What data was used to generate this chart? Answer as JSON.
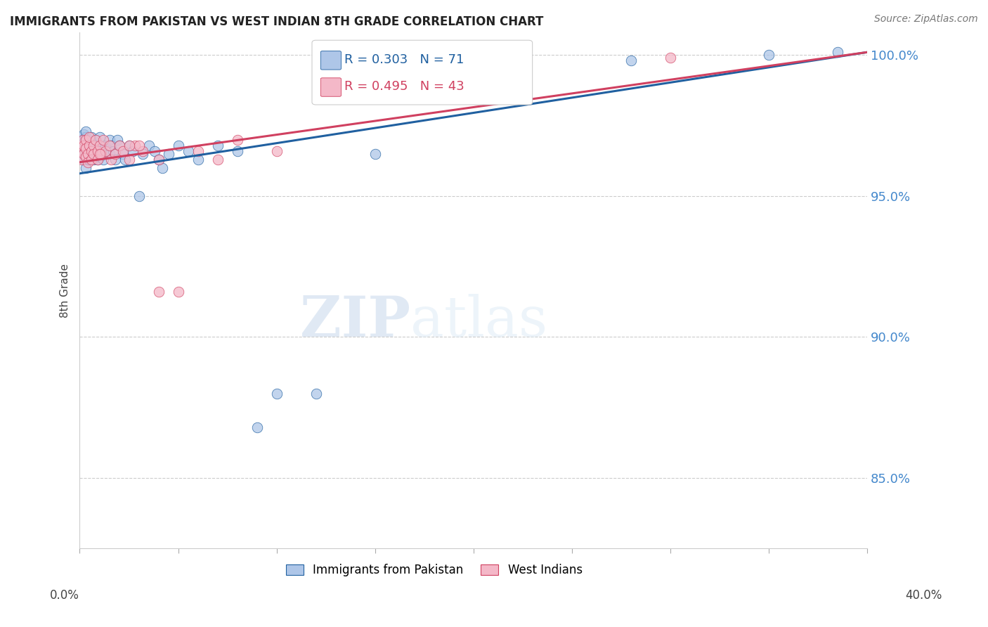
{
  "title": "IMMIGRANTS FROM PAKISTAN VS WEST INDIAN 8TH GRADE CORRELATION CHART",
  "source": "Source: ZipAtlas.com",
  "ylabel": "8th Grade",
  "y_ticks": [
    0.85,
    0.9,
    0.95,
    1.0
  ],
  "y_tick_labels": [
    "85.0%",
    "90.0%",
    "95.0%",
    "100.0%"
  ],
  "x_min": 0.0,
  "x_max": 0.4,
  "y_min": 0.825,
  "y_max": 1.008,
  "watermark_zip": "ZIP",
  "watermark_atlas": "atlas",
  "blue_color": "#aec6e8",
  "pink_color": "#f4b8c8",
  "blue_line_color": "#2060a0",
  "pink_line_color": "#d04060",
  "right_axis_color": "#4488cc",
  "legend_blue_r": "R = 0.303",
  "legend_blue_n": "N = 71",
  "legend_pink_r": "R = 0.495",
  "legend_pink_n": "N = 43",
  "pak_x": [
    0.0005,
    0.001,
    0.001,
    0.0015,
    0.0015,
    0.002,
    0.002,
    0.002,
    0.002,
    0.0025,
    0.003,
    0.003,
    0.003,
    0.003,
    0.003,
    0.004,
    0.004,
    0.004,
    0.005,
    0.005,
    0.005,
    0.005,
    0.006,
    0.006,
    0.006,
    0.007,
    0.007,
    0.008,
    0.008,
    0.008,
    0.009,
    0.009,
    0.01,
    0.01,
    0.01,
    0.011,
    0.012,
    0.012,
    0.013,
    0.014,
    0.015,
    0.015,
    0.016,
    0.017,
    0.018,
    0.019,
    0.02,
    0.022,
    0.023,
    0.025,
    0.027,
    0.03,
    0.032,
    0.035,
    0.038,
    0.04,
    0.042,
    0.045,
    0.05,
    0.055,
    0.06,
    0.07,
    0.08,
    0.09,
    0.1,
    0.12,
    0.15,
    0.2,
    0.28,
    0.35,
    0.385
  ],
  "pak_y": [
    0.966,
    0.968,
    0.971,
    0.965,
    0.97,
    0.967,
    0.963,
    0.972,
    0.969,
    0.966,
    0.964,
    0.968,
    0.971,
    0.96,
    0.973,
    0.966,
    0.963,
    0.969,
    0.965,
    0.97,
    0.963,
    0.967,
    0.968,
    0.964,
    0.971,
    0.966,
    0.963,
    0.968,
    0.965,
    0.97,
    0.966,
    0.963,
    0.968,
    0.964,
    0.971,
    0.966,
    0.965,
    0.963,
    0.968,
    0.966,
    0.97,
    0.965,
    0.968,
    0.966,
    0.963,
    0.97,
    0.968,
    0.965,
    0.963,
    0.968,
    0.966,
    0.95,
    0.965,
    0.968,
    0.966,
    0.963,
    0.96,
    0.965,
    0.968,
    0.966,
    0.963,
    0.968,
    0.966,
    0.868,
    0.88,
    0.88,
    0.965,
    0.99,
    0.998,
    1.0,
    1.001
  ],
  "wi_x": [
    0.0005,
    0.001,
    0.001,
    0.0015,
    0.002,
    0.002,
    0.003,
    0.003,
    0.003,
    0.004,
    0.004,
    0.005,
    0.005,
    0.006,
    0.006,
    0.007,
    0.007,
    0.008,
    0.009,
    0.009,
    0.01,
    0.011,
    0.012,
    0.013,
    0.015,
    0.016,
    0.018,
    0.02,
    0.022,
    0.025,
    0.028,
    0.032,
    0.04,
    0.05,
    0.06,
    0.08,
    0.1,
    0.04,
    0.03,
    0.07,
    0.025,
    0.3,
    0.01
  ],
  "wi_y": [
    0.966,
    0.963,
    0.968,
    0.97,
    0.965,
    0.968,
    0.964,
    0.97,
    0.967,
    0.965,
    0.962,
    0.968,
    0.971,
    0.966,
    0.963,
    0.968,
    0.965,
    0.97,
    0.966,
    0.963,
    0.968,
    0.965,
    0.97,
    0.966,
    0.968,
    0.963,
    0.965,
    0.968,
    0.966,
    0.963,
    0.968,
    0.966,
    0.963,
    0.916,
    0.966,
    0.97,
    0.966,
    0.916,
    0.968,
    0.963,
    0.968,
    0.999,
    0.965
  ],
  "trend_pak_x0": 0.0,
  "trend_pak_x1": 0.4,
  "trend_pak_y0": 0.958,
  "trend_pak_y1": 1.001,
  "trend_wi_x0": 0.0,
  "trend_wi_x1": 0.4,
  "trend_wi_y0": 0.962,
  "trend_wi_y1": 1.001
}
